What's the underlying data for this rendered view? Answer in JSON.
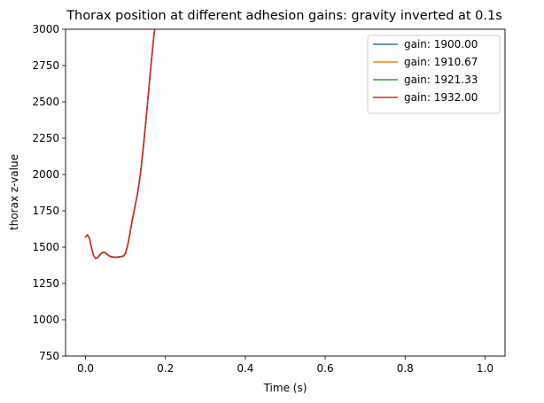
{
  "chart_data": {
    "type": "line",
    "title": "Thorax position at different adhesion gains: gravity inverted at 0.1s",
    "xlabel": "Time (s)",
    "ylabel": "thorax z-value",
    "xlim": [
      -0.05,
      1.05
    ],
    "ylim": [
      750,
      3000
    ],
    "xticks": [
      0.0,
      0.2,
      0.4,
      0.6,
      0.8,
      1.0
    ],
    "xtick_labels": [
      "0.0",
      "0.2",
      "0.4",
      "0.6",
      "0.8",
      "1.0"
    ],
    "yticks": [
      750,
      1000,
      1250,
      1500,
      1750,
      2000,
      2250,
      2500,
      2750,
      3000
    ],
    "ytick_labels": [
      "750",
      "1000",
      "1250",
      "1500",
      "1750",
      "2000",
      "2250",
      "2500",
      "2750",
      "3000"
    ],
    "grid": false,
    "legend_position": "top-right",
    "series": [
      {
        "name": "gain:  1900.00",
        "color": "#1f77b4",
        "x": [
          0.0,
          0.005,
          0.01,
          0.015,
          0.02,
          0.025,
          0.03,
          0.035,
          0.04,
          0.045,
          0.05,
          0.055,
          0.06,
          0.065,
          0.07,
          0.075,
          0.08,
          0.085,
          0.09,
          0.095,
          0.1,
          0.105,
          0.11,
          0.115,
          0.12,
          0.125,
          0.13,
          0.135,
          0.14,
          0.145,
          0.15,
          0.155,
          0.16,
          0.165,
          0.17,
          0.175,
          0.18
        ],
        "y": [
          1570,
          1585,
          1560,
          1495,
          1445,
          1425,
          1428,
          1445,
          1460,
          1467,
          1462,
          1450,
          1440,
          1435,
          1432,
          1432,
          1433,
          1435,
          1437,
          1440,
          1460,
          1510,
          1580,
          1660,
          1730,
          1800,
          1870,
          1960,
          2070,
          2200,
          2340,
          2490,
          2640,
          2790,
          2930,
          3050,
          3150
        ]
      },
      {
        "name": "gain:  1910.67",
        "color": "#ff7f0e",
        "x": [
          0.0,
          0.005,
          0.01,
          0.015,
          0.02,
          0.025,
          0.03,
          0.035,
          0.04,
          0.045,
          0.05,
          0.055,
          0.06,
          0.065,
          0.07,
          0.075,
          0.08,
          0.085,
          0.09,
          0.095,
          0.1,
          0.105,
          0.11,
          0.115,
          0.12,
          0.125,
          0.13,
          0.135,
          0.14,
          0.145,
          0.15,
          0.155,
          0.16,
          0.165,
          0.17,
          0.175,
          0.18
        ],
        "y": [
          1570,
          1585,
          1560,
          1495,
          1444,
          1424,
          1427,
          1444,
          1459,
          1466,
          1461,
          1449,
          1439,
          1434,
          1431,
          1431,
          1432,
          1434,
          1436,
          1439,
          1458,
          1508,
          1578,
          1658,
          1728,
          1798,
          1868,
          1958,
          2068,
          2198,
          2338,
          2488,
          2638,
          2788,
          2928,
          3048,
          3148
        ]
      },
      {
        "name": "gain:  1921.33",
        "color": "#2ca02c",
        "x": [
          0.0,
          0.005,
          0.01,
          0.015,
          0.02,
          0.025,
          0.03,
          0.035,
          0.04,
          0.045,
          0.05,
          0.055,
          0.06,
          0.065,
          0.07,
          0.075,
          0.08,
          0.085,
          0.09,
          0.095,
          0.1,
          0.105,
          0.11,
          0.115,
          0.12,
          0.125,
          0.13,
          0.135,
          0.14,
          0.145,
          0.15,
          0.155,
          0.16,
          0.165,
          0.17,
          0.175,
          0.18
        ],
        "y": [
          1570,
          1585,
          1560,
          1495,
          1443,
          1423,
          1426,
          1443,
          1458,
          1465,
          1460,
          1448,
          1438,
          1433,
          1430,
          1430,
          1431,
          1433,
          1435,
          1438,
          1456,
          1506,
          1576,
          1656,
          1726,
          1796,
          1866,
          1956,
          2066,
          2196,
          2336,
          2486,
          2636,
          2786,
          2926,
          3046,
          3146
        ]
      },
      {
        "name": "gain:  1932.00",
        "color": "#d62728",
        "x": [
          0.0,
          0.005,
          0.01,
          0.015,
          0.02,
          0.025,
          0.03,
          0.035,
          0.04,
          0.045,
          0.05,
          0.055,
          0.06,
          0.065,
          0.07,
          0.075,
          0.08,
          0.085,
          0.09,
          0.095,
          0.1,
          0.105,
          0.11,
          0.115,
          0.12,
          0.125,
          0.13,
          0.135,
          0.14,
          0.145,
          0.15,
          0.155,
          0.16,
          0.165,
          0.17,
          0.175,
          0.18
        ],
        "y": [
          1570,
          1585,
          1560,
          1495,
          1442,
          1422,
          1425,
          1442,
          1457,
          1464,
          1459,
          1447,
          1437,
          1432,
          1429,
          1429,
          1430,
          1432,
          1434,
          1437,
          1454,
          1504,
          1574,
          1654,
          1724,
          1794,
          1864,
          1954,
          2064,
          2194,
          2334,
          2484,
          2634,
          2784,
          2924,
          3044,
          3144
        ]
      }
    ]
  }
}
